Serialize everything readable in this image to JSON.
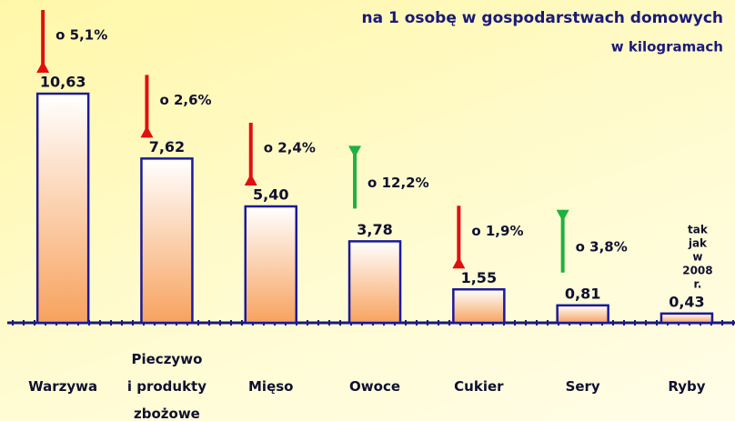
{
  "chart_data": {
    "type": "bar",
    "title": "na 1 osobę w gospodarstwach domowych",
    "subtitle": "w kilogramach",
    "categories": [
      "Warzywa",
      "Pieczywo\ni produkty\nzbożowe",
      "Mięso",
      "Owoce",
      "Cukier",
      "Sery",
      "Ryby"
    ],
    "values": [
      10.63,
      7.62,
      5.4,
      3.78,
      1.55,
      0.81,
      0.43
    ],
    "value_labels": [
      "10,63",
      "7,62",
      "5,40",
      "3,78",
      "1,55",
      "0,81",
      "0,43"
    ],
    "changes": [
      {
        "label": "o 5,1%",
        "direction": "down"
      },
      {
        "label": "o 2,6%",
        "direction": "down"
      },
      {
        "label": "o 2,4%",
        "direction": "down"
      },
      {
        "label": "o 12,2%",
        "direction": "up"
      },
      {
        "label": "o 1,9%",
        "direction": "down"
      },
      {
        "label": "o 3,8%",
        "direction": "up"
      },
      {
        "label": "tak jak\nw 2008 r.",
        "direction": "none"
      }
    ],
    "color": "#f7a25e",
    "arrow_colors": {
      "down": "#e01010",
      "up": "#20b040"
    }
  }
}
